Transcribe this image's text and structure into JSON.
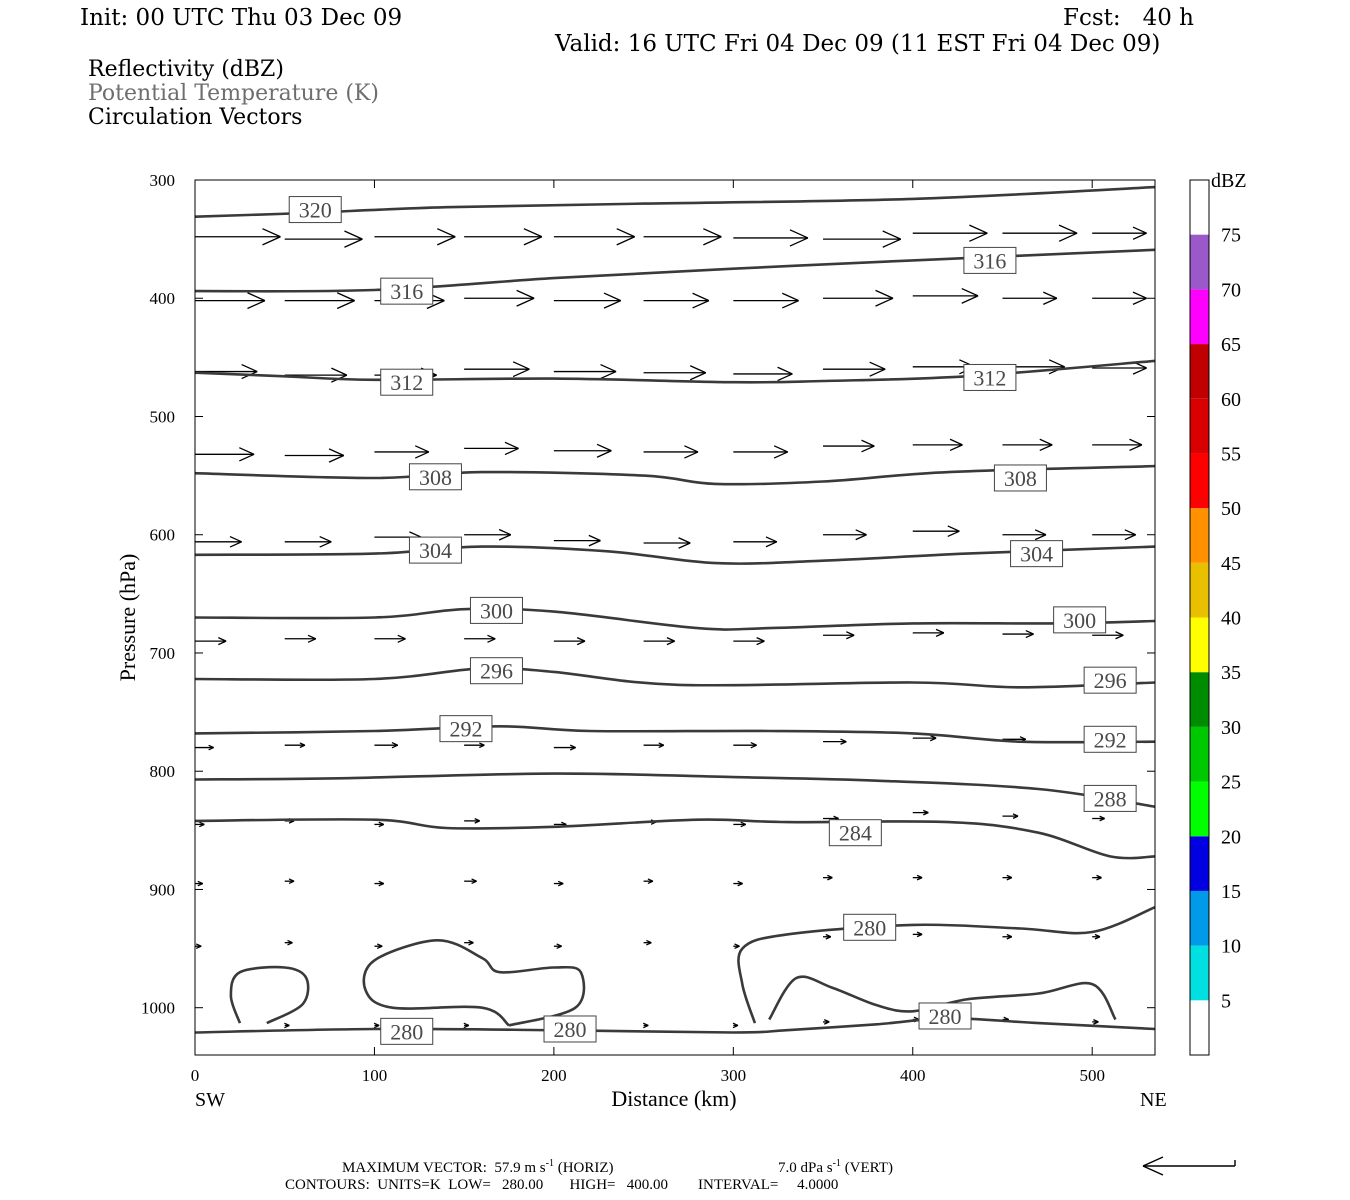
{
  "header": {
    "init": "Init: 00 UTC Thu 03 Dec 09",
    "fcst": "Fcst:   40 h",
    "valid": "Valid: 16 UTC Fri 04 Dec 09 (11 EST Fri 04 Dec 09)",
    "fields": [
      "Reflectivity (dBZ)",
      "Potential Temperature (K)",
      "Circulation Vectors"
    ]
  },
  "footer": {
    "max_vector": "MAXIMUM VECTOR:  57.9 m s",
    "horiz_tail": " (HORIZ)",
    "vert": "7.0 dPa s",
    "vert_tail": " (VERT)",
    "contours": "CONTOURS:  UNITS=K  LOW=   280.00       HIGH=   400.00        INTERVAL=     4.0000"
  },
  "chart_data": {
    "type": "line",
    "title": "Potential Temperature (K)",
    "xlabel": "Distance (km)",
    "ylabel": "Pressure (hPa)",
    "xlim": [
      0,
      535
    ],
    "ylim": [
      1040,
      300
    ],
    "x_ticks": [
      0,
      100,
      200,
      300,
      400,
      500
    ],
    "y_ticks": [
      300,
      400,
      500,
      600,
      700,
      800,
      900,
      1000
    ],
    "x_end_labels": {
      "left": "SW",
      "right": "NE"
    },
    "grid": false,
    "colorbar": {
      "label": "dBZ",
      "ticks": [
        5,
        10,
        15,
        20,
        25,
        30,
        35,
        40,
        45,
        50,
        55,
        60,
        65,
        70,
        75
      ],
      "colors": [
        "#00e0e0",
        "#009ae8",
        "#0000e0",
        "#00ff00",
        "#00c800",
        "#008c00",
        "#ffff00",
        "#e8c000",
        "#ff9000",
        "#ff0000",
        "#d80000",
        "#c00000",
        "#ff00ff",
        "#9a58c8"
      ]
    },
    "contours": [
      {
        "name": "320",
        "points": [
          [
            0,
            331
          ],
          [
            60,
            328
          ],
          [
            140,
            323
          ],
          [
            250,
            320
          ],
          [
            400,
            316
          ],
          [
            535,
            306
          ]
        ]
      },
      {
        "name": "316",
        "points": [
          [
            0,
            394
          ],
          [
            100,
            393
          ],
          [
            200,
            383
          ],
          [
            300,
            375
          ],
          [
            400,
            368
          ],
          [
            535,
            359
          ]
        ]
      },
      {
        "name": "312",
        "points": [
          [
            0,
            463
          ],
          [
            50,
            466
          ],
          [
            100,
            469
          ],
          [
            200,
            468
          ],
          [
            300,
            471
          ],
          [
            350,
            470
          ],
          [
            430,
            466
          ],
          [
            535,
            453
          ]
        ]
      },
      {
        "name": "308",
        "points": [
          [
            0,
            548
          ],
          [
            100,
            552
          ],
          [
            160,
            547
          ],
          [
            250,
            550
          ],
          [
            290,
            557
          ],
          [
            350,
            555
          ],
          [
            420,
            547
          ],
          [
            535,
            542
          ]
        ]
      },
      {
        "name": "304",
        "points": [
          [
            0,
            617
          ],
          [
            100,
            616
          ],
          [
            160,
            610
          ],
          [
            230,
            614
          ],
          [
            290,
            624
          ],
          [
            350,
            622
          ],
          [
            430,
            616
          ],
          [
            535,
            610
          ]
        ]
      },
      {
        "name": "300",
        "points": [
          [
            0,
            670
          ],
          [
            100,
            670
          ],
          [
            150,
            663
          ],
          [
            200,
            665
          ],
          [
            280,
            679
          ],
          [
            320,
            679
          ],
          [
            400,
            675
          ],
          [
            480,
            675
          ],
          [
            535,
            673
          ]
        ]
      },
      {
        "name": "296",
        "points": [
          [
            0,
            722
          ],
          [
            100,
            722
          ],
          [
            160,
            713
          ],
          [
            200,
            716
          ],
          [
            270,
            727
          ],
          [
            400,
            725
          ],
          [
            460,
            729
          ],
          [
            535,
            725
          ]
        ]
      },
      {
        "name": "292",
        "points": [
          [
            0,
            768
          ],
          [
            100,
            766
          ],
          [
            170,
            762
          ],
          [
            220,
            766
          ],
          [
            320,
            766
          ],
          [
            400,
            768
          ],
          [
            460,
            775
          ],
          [
            535,
            775
          ]
        ]
      },
      {
        "name": "288",
        "points": [
          [
            0,
            807
          ],
          [
            80,
            806
          ],
          [
            200,
            802
          ],
          [
            300,
            805
          ],
          [
            380,
            808
          ],
          [
            470,
            815
          ],
          [
            535,
            830
          ]
        ]
      },
      {
        "name": "284",
        "points": [
          [
            0,
            842
          ],
          [
            100,
            841
          ],
          [
            140,
            848
          ],
          [
            200,
            847
          ],
          [
            280,
            841
          ],
          [
            330,
            843
          ],
          [
            420,
            843
          ],
          [
            470,
            852
          ],
          [
            510,
            872
          ],
          [
            535,
            872
          ]
        ]
      },
      {
        "name": "280",
        "points": [
          [
            0,
            1021
          ],
          [
            100,
            1018
          ],
          [
            200,
            1019
          ],
          [
            300,
            1021
          ],
          [
            330,
            1019
          ],
          [
            380,
            1014
          ],
          [
            420,
            1009
          ],
          [
            470,
            1013
          ],
          [
            535,
            1018
          ]
        ]
      },
      {
        "name": "280",
        "points": [
          [
            312,
            1013
          ],
          [
            305,
            980
          ],
          [
            305,
            950
          ],
          [
            330,
            938
          ],
          [
            400,
            930
          ],
          [
            460,
            933
          ],
          [
            500,
            936
          ],
          [
            535,
            915
          ]
        ]
      },
      {
        "name": "280",
        "points": [
          [
            25,
            1013
          ],
          [
            20,
            990
          ],
          [
            25,
            970
          ],
          [
            50,
            966
          ],
          [
            62,
            975
          ],
          [
            60,
            997
          ],
          [
            40,
            1013
          ]
        ]
      },
      {
        "name": "280",
        "points": [
          [
            175,
            1015
          ],
          [
            160,
            1000
          ],
          [
            110,
            1000
          ],
          [
            95,
            985
          ],
          [
            100,
            960
          ],
          [
            135,
            943
          ],
          [
            160,
            958
          ],
          [
            170,
            970
          ],
          [
            200,
            966
          ],
          [
            215,
            970
          ],
          [
            212,
            1000
          ],
          [
            175,
            1015
          ]
        ]
      },
      {
        "name": "280",
        "points": [
          [
            320,
            1010
          ],
          [
            335,
            975
          ],
          [
            355,
            983
          ],
          [
            380,
            998
          ],
          [
            400,
            1003
          ],
          [
            430,
            993
          ],
          [
            470,
            988
          ],
          [
            500,
            980
          ],
          [
            513,
            1010
          ]
        ]
      }
    ],
    "vectors": [
      {
        "x": 0,
        "p": 348,
        "u": 55
      },
      {
        "x": 50,
        "p": 350,
        "u": 50
      },
      {
        "x": 100,
        "p": 348,
        "u": 52
      },
      {
        "x": 150,
        "p": 348,
        "u": 50
      },
      {
        "x": 200,
        "p": 348,
        "u": 52
      },
      {
        "x": 250,
        "p": 348,
        "u": 50
      },
      {
        "x": 300,
        "p": 349,
        "u": 48
      },
      {
        "x": 350,
        "p": 350,
        "u": 50
      },
      {
        "x": 400,
        "p": 345,
        "u": 48
      },
      {
        "x": 450,
        "p": 345,
        "u": 48
      },
      {
        "x": 500,
        "p": 345,
        "u": 35
      },
      {
        "x": 0,
        "p": 402,
        "u": 45
      },
      {
        "x": 50,
        "p": 402,
        "u": 45
      },
      {
        "x": 100,
        "p": 402,
        "u": 45
      },
      {
        "x": 150,
        "p": 400,
        "u": 45
      },
      {
        "x": 200,
        "p": 402,
        "u": 43
      },
      {
        "x": 250,
        "p": 402,
        "u": 42
      },
      {
        "x": 300,
        "p": 402,
        "u": 42
      },
      {
        "x": 350,
        "p": 400,
        "u": 45
      },
      {
        "x": 400,
        "p": 398,
        "u": 42
      },
      {
        "x": 450,
        "p": 400,
        "u": 35
      },
      {
        "x": 500,
        "p": 400,
        "u": 35
      },
      {
        "x": 0,
        "p": 462,
        "u": 40
      },
      {
        "x": 50,
        "p": 465,
        "u": 40
      },
      {
        "x": 100,
        "p": 465,
        "u": 40
      },
      {
        "x": 150,
        "p": 460,
        "u": 42
      },
      {
        "x": 200,
        "p": 462,
        "u": 40
      },
      {
        "x": 250,
        "p": 463,
        "u": 40
      },
      {
        "x": 300,
        "p": 464,
        "u": 38
      },
      {
        "x": 350,
        "p": 460,
        "u": 40
      },
      {
        "x": 400,
        "p": 458,
        "u": 40
      },
      {
        "x": 450,
        "p": 458,
        "u": 40
      },
      {
        "x": 500,
        "p": 459,
        "u": 35
      },
      {
        "x": 0,
        "p": 532,
        "u": 38
      },
      {
        "x": 50,
        "p": 533,
        "u": 38
      },
      {
        "x": 100,
        "p": 530,
        "u": 35
      },
      {
        "x": 150,
        "p": 527,
        "u": 35
      },
      {
        "x": 200,
        "p": 529,
        "u": 37
      },
      {
        "x": 250,
        "p": 530,
        "u": 35
      },
      {
        "x": 300,
        "p": 530,
        "u": 35
      },
      {
        "x": 350,
        "p": 525,
        "u": 33
      },
      {
        "x": 400,
        "p": 524,
        "u": 32
      },
      {
        "x": 450,
        "p": 524,
        "u": 32
      },
      {
        "x": 500,
        "p": 524,
        "u": 32
      },
      {
        "x": 0,
        "p": 606,
        "u": 30
      },
      {
        "x": 50,
        "p": 606,
        "u": 30
      },
      {
        "x": 100,
        "p": 602,
        "u": 30
      },
      {
        "x": 150,
        "p": 600,
        "u": 30
      },
      {
        "x": 200,
        "p": 605,
        "u": 30
      },
      {
        "x": 250,
        "p": 607,
        "u": 30
      },
      {
        "x": 300,
        "p": 606,
        "u": 28
      },
      {
        "x": 350,
        "p": 600,
        "u": 28
      },
      {
        "x": 400,
        "p": 597,
        "u": 30
      },
      {
        "x": 450,
        "p": 600,
        "u": 28
      },
      {
        "x": 500,
        "p": 600,
        "u": 28
      },
      {
        "x": 0,
        "p": 690,
        "u": 20
      },
      {
        "x": 50,
        "p": 688,
        "u": 20
      },
      {
        "x": 100,
        "p": 688,
        "u": 20
      },
      {
        "x": 150,
        "p": 688,
        "u": 20
      },
      {
        "x": 200,
        "p": 690,
        "u": 20
      },
      {
        "x": 250,
        "p": 690,
        "u": 20
      },
      {
        "x": 300,
        "p": 690,
        "u": 20
      },
      {
        "x": 350,
        "p": 685,
        "u": 20
      },
      {
        "x": 400,
        "p": 683,
        "u": 20
      },
      {
        "x": 450,
        "p": 684,
        "u": 20
      },
      {
        "x": 500,
        "p": 685,
        "u": 20
      },
      {
        "x": 0,
        "p": 780,
        "u": 12
      },
      {
        "x": 50,
        "p": 778,
        "u": 13
      },
      {
        "x": 100,
        "p": 778,
        "u": 15
      },
      {
        "x": 150,
        "p": 778,
        "u": 13
      },
      {
        "x": 200,
        "p": 780,
        "u": 14
      },
      {
        "x": 250,
        "p": 778,
        "u": 13
      },
      {
        "x": 300,
        "p": 778,
        "u": 15
      },
      {
        "x": 350,
        "p": 775,
        "u": 15
      },
      {
        "x": 400,
        "p": 772,
        "u": 15
      },
      {
        "x": 450,
        "p": 773,
        "u": 15
      },
      {
        "x": 500,
        "p": 775,
        "u": 15
      },
      {
        "x": 0,
        "p": 845,
        "u": 6
      },
      {
        "x": 50,
        "p": 842,
        "u": 6
      },
      {
        "x": 100,
        "p": 845,
        "u": 6
      },
      {
        "x": 150,
        "p": 842,
        "u": 10
      },
      {
        "x": 200,
        "p": 845,
        "u": 8
      },
      {
        "x": 250,
        "p": 843,
        "u": 8
      },
      {
        "x": 300,
        "p": 845,
        "u": 8
      },
      {
        "x": 350,
        "p": 840,
        "u": 10
      },
      {
        "x": 400,
        "p": 835,
        "u": 10
      },
      {
        "x": 450,
        "p": 838,
        "u": 10
      },
      {
        "x": 500,
        "p": 840,
        "u": 8
      },
      {
        "x": 0,
        "p": 895,
        "u": 5
      },
      {
        "x": 50,
        "p": 893,
        "u": 6
      },
      {
        "x": 100,
        "p": 895,
        "u": 6
      },
      {
        "x": 150,
        "p": 893,
        "u": 8
      },
      {
        "x": 200,
        "p": 895,
        "u": 6
      },
      {
        "x": 250,
        "p": 893,
        "u": 6
      },
      {
        "x": 300,
        "p": 895,
        "u": 6
      },
      {
        "x": 350,
        "p": 890,
        "u": 6
      },
      {
        "x": 400,
        "p": 890,
        "u": 6
      },
      {
        "x": 450,
        "p": 890,
        "u": 6
      },
      {
        "x": 500,
        "p": 890,
        "u": 6
      },
      {
        "x": 0,
        "p": 948,
        "u": 4
      },
      {
        "x": 50,
        "p": 945,
        "u": 5
      },
      {
        "x": 100,
        "p": 948,
        "u": 5
      },
      {
        "x": 150,
        "p": 945,
        "u": 6
      },
      {
        "x": 200,
        "p": 948,
        "u": 5
      },
      {
        "x": 250,
        "p": 945,
        "u": 5
      },
      {
        "x": 300,
        "p": 948,
        "u": 4
      },
      {
        "x": 350,
        "p": 940,
        "u": 5
      },
      {
        "x": 400,
        "p": 938,
        "u": 6
      },
      {
        "x": 450,
        "p": 940,
        "u": 6
      },
      {
        "x": 500,
        "p": 940,
        "u": 5
      },
      {
        "x": 50,
        "p": 1015,
        "u": 3
      },
      {
        "x": 100,
        "p": 1015,
        "u": 3
      },
      {
        "x": 150,
        "p": 1015,
        "u": 3
      },
      {
        "x": 200,
        "p": 1015,
        "u": 3
      },
      {
        "x": 250,
        "p": 1015,
        "u": 3
      },
      {
        "x": 300,
        "p": 1015,
        "u": 3
      },
      {
        "x": 350,
        "p": 1012,
        "u": 4
      },
      {
        "x": 400,
        "p": 1010,
        "u": 4
      },
      {
        "x": 450,
        "p": 1010,
        "u": 4
      },
      {
        "x": 500,
        "p": 1012,
        "u": 4
      }
    ],
    "contour_labels": [
      {
        "text": "320",
        "x": 67,
        "p": 325
      },
      {
        "text": "316",
        "x": 118,
        "p": 394
      },
      {
        "text": "316",
        "x": 443,
        "p": 368
      },
      {
        "text": "312",
        "x": 118,
        "p": 471
      },
      {
        "text": "312",
        "x": 443,
        "p": 467
      },
      {
        "text": "308",
        "x": 134,
        "p": 551
      },
      {
        "text": "308",
        "x": 460,
        "p": 552
      },
      {
        "text": "304",
        "x": 134,
        "p": 613
      },
      {
        "text": "304",
        "x": 469,
        "p": 616
      },
      {
        "text": "300",
        "x": 168,
        "p": 664
      },
      {
        "text": "300",
        "x": 493,
        "p": 672
      },
      {
        "text": "296",
        "x": 168,
        "p": 715
      },
      {
        "text": "296",
        "x": 510,
        "p": 723
      },
      {
        "text": "292",
        "x": 151,
        "p": 764
      },
      {
        "text": "292",
        "x": 510,
        "p": 773
      },
      {
        "text": "288",
        "x": 510,
        "p": 823
      },
      {
        "text": "284",
        "x": 368,
        "p": 852
      },
      {
        "text": "280",
        "x": 376,
        "p": 932
      },
      {
        "text": "280",
        "x": 418,
        "p": 1007
      },
      {
        "text": "280",
        "x": 118,
        "p": 1020
      },
      {
        "text": "280",
        "x": 209,
        "p": 1018
      }
    ]
  }
}
